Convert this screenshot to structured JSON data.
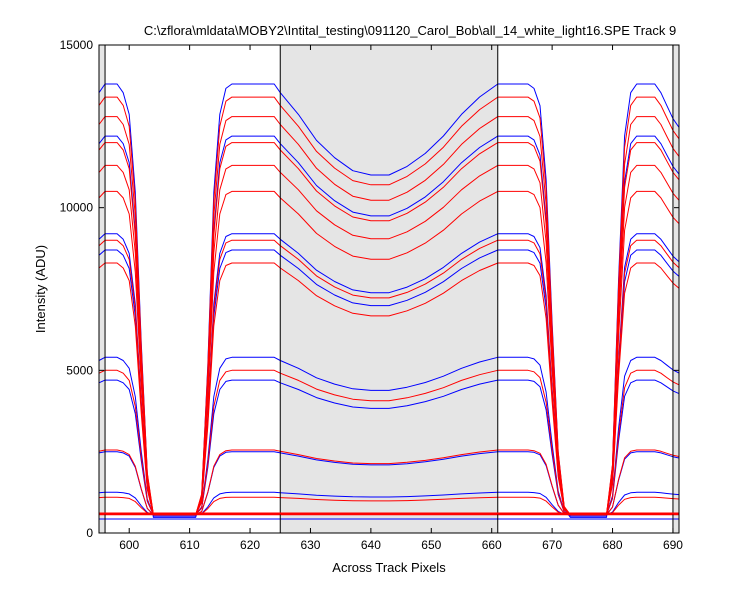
{
  "chart_data": {
    "type": "line",
    "title": "C:\\zflora\\mldata\\MOBY2\\Intital_testing\\091120_Carol_Bob\\all_14_white_light16.SPE    Track 9",
    "xlabel": "Across Track Pixels",
    "ylabel": "Intensity (ADU)",
    "xlim": [
      595,
      691
    ],
    "ylim": [
      0,
      15000
    ],
    "xticks": [
      600,
      610,
      620,
      630,
      640,
      650,
      660,
      670,
      680,
      690
    ],
    "yticks": [
      0,
      5000,
      10000,
      15000
    ],
    "grid": false,
    "legend": "none",
    "colors": {
      "blue": "#0000ff",
      "red": "#ff0000",
      "shade": "#e5e5e5",
      "axis": "#000000"
    },
    "shaded_regions": [
      [
        595,
        596
      ],
      [
        625,
        661
      ],
      [
        690,
        691
      ]
    ],
    "vertical_lines": [
      596,
      625,
      661,
      690
    ],
    "threshold_line": 600,
    "curve_template": {
      "x": [
        595,
        596,
        597,
        598,
        599,
        600,
        601,
        602,
        603,
        604,
        605,
        606,
        607,
        608,
        609,
        610,
        611,
        612,
        613,
        614,
        615,
        616,
        617,
        618,
        619,
        620,
        621,
        622,
        623,
        624,
        625,
        628,
        631,
        634,
        637,
        640,
        643,
        646,
        649,
        652,
        655,
        658,
        661,
        662,
        663,
        664,
        665,
        666,
        667,
        668,
        669,
        670,
        671,
        672,
        673,
        674,
        675,
        676,
        677,
        678,
        679,
        680,
        681,
        682,
        683,
        684,
        685,
        686,
        687,
        688,
        689,
        690,
        691
      ],
      "shape": [
        0.98,
        1.0,
        1.0,
        1.0,
        0.98,
        0.93,
        0.75,
        0.4,
        0.1,
        0.0,
        0.0,
        0.0,
        0.0,
        0.0,
        0.0,
        0.0,
        0.0,
        0.05,
        0.35,
        0.75,
        0.93,
        0.99,
        1.0,
        1.0,
        1.0,
        1.0,
        1.0,
        1.0,
        1.0,
        1.0,
        0.98,
        0.93,
        0.87,
        0.83,
        0.8,
        0.79,
        0.79,
        0.81,
        0.84,
        0.88,
        0.93,
        0.97,
        1.0,
        1.0,
        1.0,
        1.0,
        1.0,
        1.0,
        0.99,
        0.95,
        0.78,
        0.45,
        0.15,
        0.02,
        0.0,
        0.0,
        0.0,
        0.0,
        0.0,
        0.0,
        0.0,
        0.12,
        0.55,
        0.88,
        0.98,
        1.0,
        1.0,
        1.0,
        1.0,
        0.98,
        0.95,
        0.92,
        0.9
      ]
    },
    "series": [
      {
        "color": "blue",
        "base": 480,
        "peak": 13800
      },
      {
        "color": "blue",
        "base": 520,
        "peak": 12200
      },
      {
        "color": "blue",
        "base": 560,
        "peak": 9200
      },
      {
        "color": "blue",
        "base": 560,
        "peak": 8700
      },
      {
        "color": "blue",
        "base": 560,
        "peak": 5400
      },
      {
        "color": "blue",
        "base": 560,
        "peak": 4700
      },
      {
        "color": "blue",
        "base": 560,
        "peak": 2500
      },
      {
        "color": "blue",
        "base": 560,
        "peak": 1250
      },
      {
        "color": "blue",
        "base": 430,
        "peak": 430
      },
      {
        "color": "red",
        "base": 560,
        "peak": 13400
      },
      {
        "color": "red",
        "base": 560,
        "peak": 12800
      },
      {
        "color": "red",
        "base": 560,
        "peak": 12000
      },
      {
        "color": "red",
        "base": 560,
        "peak": 11300
      },
      {
        "color": "red",
        "base": 560,
        "peak": 10500
      },
      {
        "color": "red",
        "base": 560,
        "peak": 9000
      },
      {
        "color": "red",
        "base": 560,
        "peak": 8300
      },
      {
        "color": "red",
        "base": 560,
        "peak": 5000
      },
      {
        "color": "red",
        "base": 560,
        "peak": 2550
      },
      {
        "color": "red",
        "base": 560,
        "peak": 1100
      },
      {
        "color": "red",
        "base": 560,
        "peak": 560
      }
    ]
  }
}
